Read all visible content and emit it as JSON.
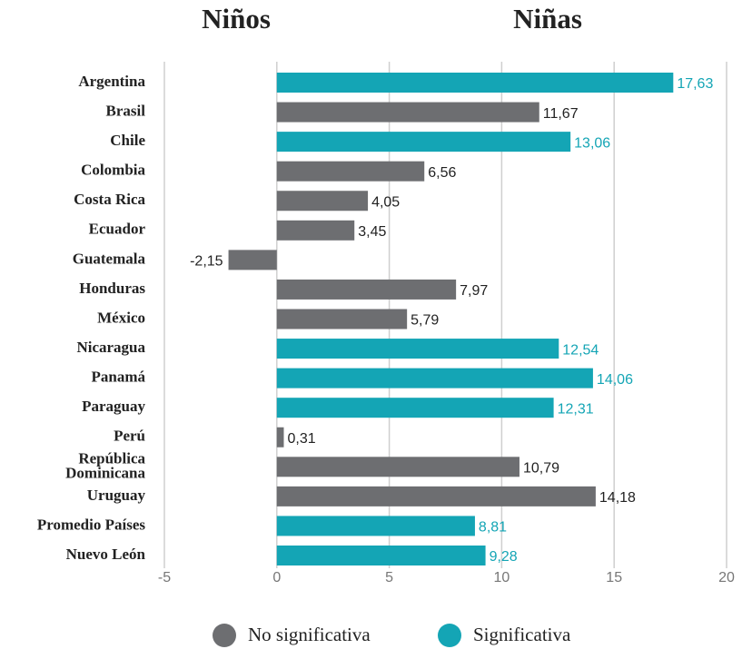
{
  "chart_data": {
    "type": "bar",
    "orientation": "horizontal",
    "annotations": [
      "Niños",
      "Niñas"
    ],
    "categories": [
      "Argentina",
      "Brasil",
      "Chile",
      "Colombia",
      "Costa Rica",
      "Ecuador",
      "Guatemala",
      "Honduras",
      "México",
      "Nicaragua",
      "Panamá",
      "Paraguay",
      "Perú",
      "República Dominicana",
      "Uruguay",
      "Promedio Países",
      "Nuevo León"
    ],
    "series": [
      {
        "name": "No significativa",
        "color": "#6d6e71",
        "values": [
          null,
          11.67,
          null,
          6.56,
          4.05,
          3.45,
          -2.15,
          7.97,
          5.79,
          null,
          null,
          null,
          0.31,
          10.79,
          14.18,
          null,
          null
        ],
        "value_labels": [
          null,
          "11,67",
          null,
          "6,56",
          "4,05",
          "3,45",
          "-2,15",
          "7,97",
          "5,79",
          null,
          null,
          null,
          "0,31",
          "10,79",
          "14,18",
          null,
          null
        ]
      },
      {
        "name": "Significativa",
        "color": "#14a5b5",
        "values": [
          17.63,
          null,
          13.06,
          null,
          null,
          null,
          null,
          null,
          null,
          12.54,
          14.06,
          12.31,
          null,
          null,
          null,
          8.81,
          9.28
        ],
        "value_labels": [
          "17,63",
          null,
          "13,06",
          null,
          null,
          null,
          null,
          null,
          null,
          "12,54",
          "14,06",
          "12,31",
          null,
          null,
          null,
          "8,81",
          "9,28"
        ]
      }
    ],
    "xlim": [
      -5,
      20
    ],
    "xticks": [
      -5,
      0,
      5,
      10,
      15,
      20
    ],
    "grid": true
  }
}
